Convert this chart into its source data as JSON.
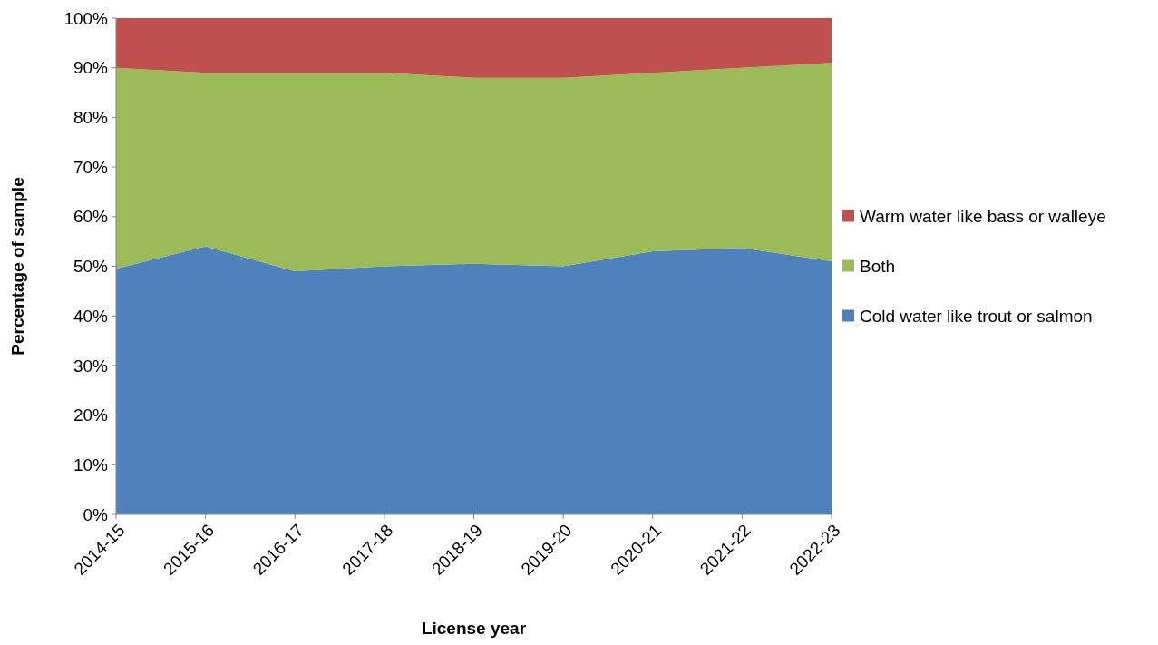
{
  "chart_data": {
    "type": "area",
    "stacked": true,
    "xlabel": "License year",
    "ylabel": "Percentage of sample",
    "categories": [
      "2014-15",
      "2015-16",
      "2016-17",
      "2017-18",
      "2018-19",
      "2019-20",
      "2020-21",
      "2021-22",
      "2022-23"
    ],
    "series": [
      {
        "name": "Cold water like trout or salmon",
        "color": "#4f81bd",
        "values": [
          49.5,
          54,
          49,
          50,
          50.5,
          50,
          53,
          53.7,
          51
        ]
      },
      {
        "name": "Both",
        "color": "#9bbb59",
        "values": [
          40.5,
          35,
          40,
          39,
          37.5,
          38,
          36,
          36.3,
          40
        ]
      },
      {
        "name": "Warm water like bass or walleye",
        "color": "#c0504d",
        "values": [
          10,
          11,
          11,
          11,
          12,
          12,
          11,
          10,
          9
        ]
      }
    ],
    "ylim": [
      0,
      100
    ],
    "yticks": [
      {
        "value": 0,
        "label": "0%"
      },
      {
        "value": 10,
        "label": "10%"
      },
      {
        "value": 20,
        "label": "20%"
      },
      {
        "value": 30,
        "label": "30%"
      },
      {
        "value": 40,
        "label": "40%"
      },
      {
        "value": 50,
        "label": "50%"
      },
      {
        "value": 60,
        "label": "60%"
      },
      {
        "value": 70,
        "label": "70%"
      },
      {
        "value": 80,
        "label": "80%"
      },
      {
        "value": 90,
        "label": "90%"
      },
      {
        "value": 100,
        "label": "100%"
      }
    ],
    "grid": false,
    "legend": "right"
  }
}
